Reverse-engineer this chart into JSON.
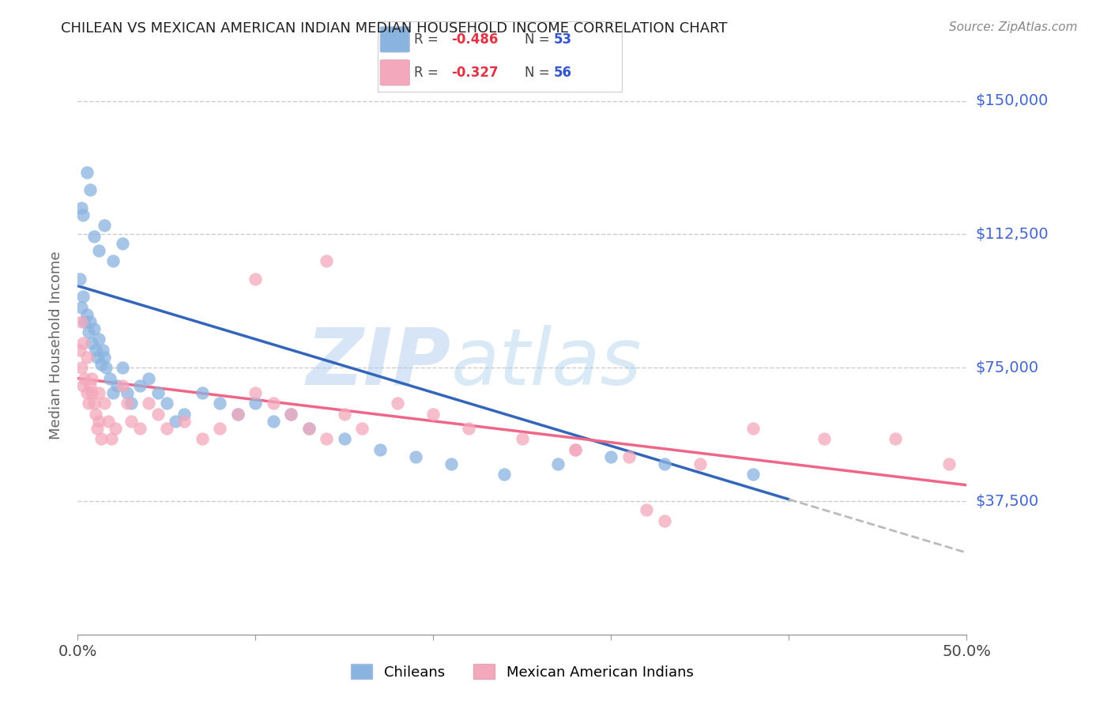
{
  "title": "CHILEAN VS MEXICAN AMERICAN INDIAN MEDIAN HOUSEHOLD INCOME CORRELATION CHART",
  "source": "Source: ZipAtlas.com",
  "ylabel": "Median Household Income",
  "xlim": [
    0.0,
    0.5
  ],
  "ylim": [
    0,
    162500
  ],
  "blue_R": -0.486,
  "blue_N": 53,
  "pink_R": -0.327,
  "pink_N": 56,
  "blue_color": "#8ab4e0",
  "pink_color": "#f4a8bc",
  "blue_line_color": "#3366bb",
  "pink_line_color": "#ee6688",
  "dash_color": "#bbbbbb",
  "watermark_color": "#c8ddf5",
  "grid_color": "#cccccc",
  "ytick_color": "#4466cc",
  "xtick_color": "#444444",
  "title_color": "#222222",
  "source_color": "#888888",
  "ylabel_color": "#666666",
  "background_color": "#ffffff",
  "blue_scatter_x": [
    0.001,
    0.002,
    0.003,
    0.004,
    0.005,
    0.006,
    0.007,
    0.008,
    0.009,
    0.01,
    0.011,
    0.012,
    0.013,
    0.014,
    0.015,
    0.016,
    0.018,
    0.02,
    0.022,
    0.025,
    0.028,
    0.03,
    0.035,
    0.04,
    0.045,
    0.05,
    0.055,
    0.06,
    0.07,
    0.08,
    0.09,
    0.1,
    0.11,
    0.12,
    0.13,
    0.15,
    0.17,
    0.19,
    0.21,
    0.24,
    0.27,
    0.3,
    0.33,
    0.002,
    0.003,
    0.005,
    0.007,
    0.009,
    0.012,
    0.015,
    0.02,
    0.025,
    0.38
  ],
  "blue_scatter_y": [
    100000,
    92000,
    95000,
    88000,
    90000,
    85000,
    88000,
    82000,
    86000,
    80000,
    78000,
    83000,
    76000,
    80000,
    78000,
    75000,
    72000,
    68000,
    70000,
    75000,
    68000,
    65000,
    70000,
    72000,
    68000,
    65000,
    60000,
    62000,
    68000,
    65000,
    62000,
    65000,
    60000,
    62000,
    58000,
    55000,
    52000,
    50000,
    48000,
    45000,
    48000,
    50000,
    48000,
    120000,
    118000,
    130000,
    125000,
    112000,
    108000,
    115000,
    105000,
    110000,
    45000
  ],
  "pink_scatter_x": [
    0.001,
    0.002,
    0.003,
    0.004,
    0.005,
    0.006,
    0.007,
    0.008,
    0.009,
    0.01,
    0.011,
    0.012,
    0.013,
    0.015,
    0.017,
    0.019,
    0.021,
    0.025,
    0.028,
    0.03,
    0.035,
    0.04,
    0.045,
    0.05,
    0.06,
    0.07,
    0.08,
    0.09,
    0.1,
    0.11,
    0.12,
    0.13,
    0.14,
    0.15,
    0.16,
    0.18,
    0.2,
    0.22,
    0.25,
    0.28,
    0.31,
    0.35,
    0.38,
    0.42,
    0.46,
    0.49,
    0.002,
    0.003,
    0.005,
    0.008,
    0.012,
    0.1,
    0.14,
    0.28,
    0.32,
    0.33
  ],
  "pink_scatter_y": [
    80000,
    75000,
    70000,
    72000,
    68000,
    65000,
    70000,
    68000,
    65000,
    62000,
    58000,
    60000,
    55000,
    65000,
    60000,
    55000,
    58000,
    70000,
    65000,
    60000,
    58000,
    65000,
    62000,
    58000,
    60000,
    55000,
    58000,
    62000,
    68000,
    65000,
    62000,
    58000,
    55000,
    62000,
    58000,
    65000,
    62000,
    58000,
    55000,
    52000,
    50000,
    48000,
    58000,
    55000,
    55000,
    48000,
    88000,
    82000,
    78000,
    72000,
    68000,
    100000,
    105000,
    52000,
    35000,
    32000
  ]
}
